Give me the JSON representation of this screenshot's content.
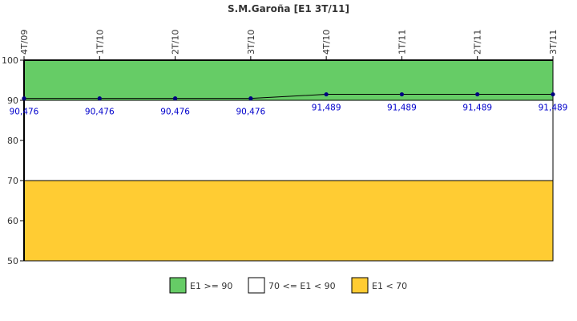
{
  "chart_data": {
    "type": "line",
    "title": "S.M.Garoña [E1 3T/11]",
    "categories": [
      "4T/09",
      "1T/10",
      "2T/10",
      "3T/10",
      "4T/10",
      "1T/11",
      "2T/11",
      "3T/11"
    ],
    "series": [
      {
        "name": "E1",
        "values": [
          90.476,
          90.476,
          90.476,
          90.476,
          91.489,
          91.489,
          91.489,
          91.489
        ],
        "labels": [
          "90,476",
          "90,476",
          "90,476",
          "90,476",
          "91,489",
          "91,489",
          "91,489",
          "91,489"
        ],
        "color": "#000080"
      }
    ],
    "ylim": [
      50,
      100
    ],
    "yticks": [
      50,
      60,
      70,
      80,
      90,
      100
    ],
    "bands": [
      {
        "from": 90,
        "to": 100,
        "color": "#66cc66",
        "label": "E1 >= 90"
      },
      {
        "from": 70,
        "to": 90,
        "color": "#ffffff",
        "label": "70 <= E1 < 90"
      },
      {
        "from": 50,
        "to": 70,
        "color": "#ffcc33",
        "label": "E1 < 70"
      }
    ],
    "legend_position": "bottom",
    "xlabel": "",
    "ylabel": ""
  }
}
